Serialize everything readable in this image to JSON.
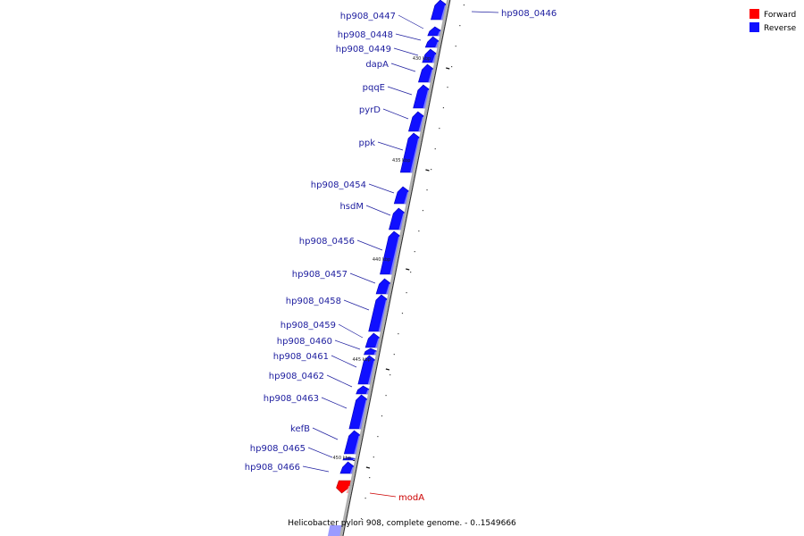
{
  "colors": {
    "forward": "#ff0000",
    "reverse": "#1010ff",
    "reverse_dark": "#0000b8",
    "reverse_light": "#9090ff",
    "forward_light": "#ff9a9a",
    "label_reverse": "#2020a0",
    "label_forward": "#cc0000",
    "backbone": "#999999",
    "backbone_dark": "#333333"
  },
  "legend": [
    {
      "label": "Forward",
      "color": "#ff0000"
    },
    {
      "label": "Reverse",
      "color": "#1010ff"
    }
  ],
  "title": "Helicobacter pylori 908, complete genome. - 0..1549666",
  "ticks": [
    "430 kbp",
    "435 kbp",
    "440 kbp",
    "445 kbp",
    "450 kbp"
  ],
  "genes": [
    {
      "label": "hp908_0446",
      "strand": "reverse"
    },
    {
      "label": "hp908_0447",
      "strand": "reverse"
    },
    {
      "label": "hp908_0448",
      "strand": "reverse"
    },
    {
      "label": "hp908_0449",
      "strand": "reverse"
    },
    {
      "label": "dapA",
      "strand": "reverse"
    },
    {
      "label": "pqqE",
      "strand": "reverse"
    },
    {
      "label": "pyrD",
      "strand": "reverse"
    },
    {
      "label": "ppk",
      "strand": "reverse"
    },
    {
      "label": "hp908_0454",
      "strand": "reverse"
    },
    {
      "label": "hsdM",
      "strand": "reverse"
    },
    {
      "label": "hp908_0456",
      "strand": "reverse"
    },
    {
      "label": "hp908_0457",
      "strand": "reverse"
    },
    {
      "label": "hp908_0458",
      "strand": "reverse"
    },
    {
      "label": "hp908_0459",
      "strand": "reverse"
    },
    {
      "label": "hp908_0460",
      "strand": "reverse"
    },
    {
      "label": "hp908_0461",
      "strand": "reverse"
    },
    {
      "label": "hp908_0462",
      "strand": "reverse"
    },
    {
      "label": "hp908_0463",
      "strand": "reverse"
    },
    {
      "label": "kefB",
      "strand": "reverse"
    },
    {
      "label": "hp908_0465",
      "strand": "reverse"
    },
    {
      "label": "hp908_0466",
      "strand": "reverse"
    },
    {
      "label": "modA",
      "strand": "forward"
    }
  ]
}
